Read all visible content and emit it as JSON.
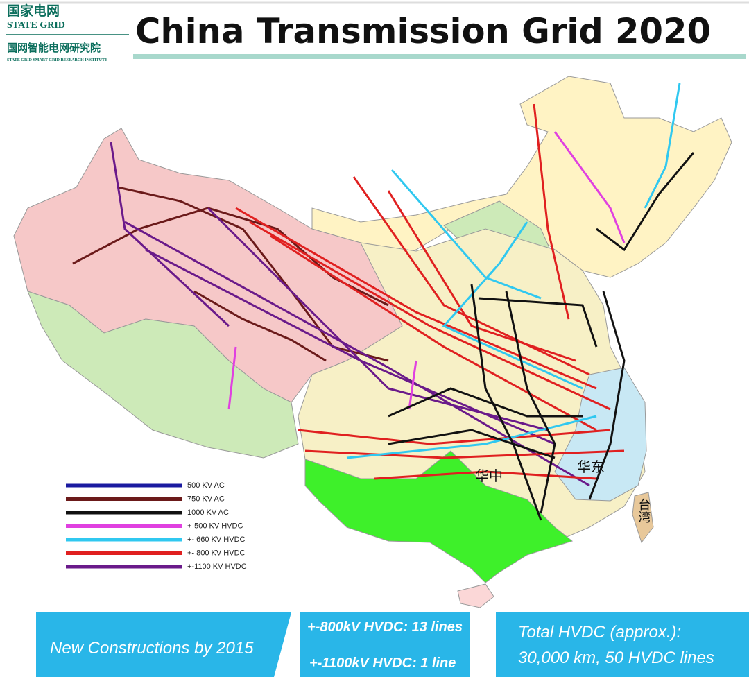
{
  "header": {
    "logo_cn": "国家电网",
    "logo_en": "STATE GRID",
    "institute_cn": "国网智能电网研究院",
    "institute_en": "STATE GRID SMART GRID RESEARCH INSTITUTE",
    "title": "China Transmission Grid 2020"
  },
  "map": {
    "region_labels": [
      "华中",
      "华东",
      "台湾"
    ]
  },
  "legend": {
    "items": [
      {
        "label": "500 KV AC",
        "color": "#1a1aa0"
      },
      {
        "label": "750 KV AC",
        "color": "#6b1a1a"
      },
      {
        "label": "1000 KV AC",
        "color": "#111111"
      },
      {
        "label": "+-500 KV HVDC",
        "color": "#e040e0"
      },
      {
        "label": "+- 660 KV HVDC",
        "color": "#30c8f0"
      },
      {
        "label": "+- 800 KV HVDC",
        "color": "#e02020"
      },
      {
        "label": "+-1100 KV HVDC",
        "color": "#6a1a8a"
      }
    ]
  },
  "footer": {
    "box1": "New Constructions by 2015",
    "box2": [
      "+-800kV HVDC: 13 lines",
      "+-1100kV HVDC: 1 line"
    ],
    "box3": [
      "Total HVDC (approx.):",
      "30,000 km, 50 HVDC lines"
    ]
  }
}
